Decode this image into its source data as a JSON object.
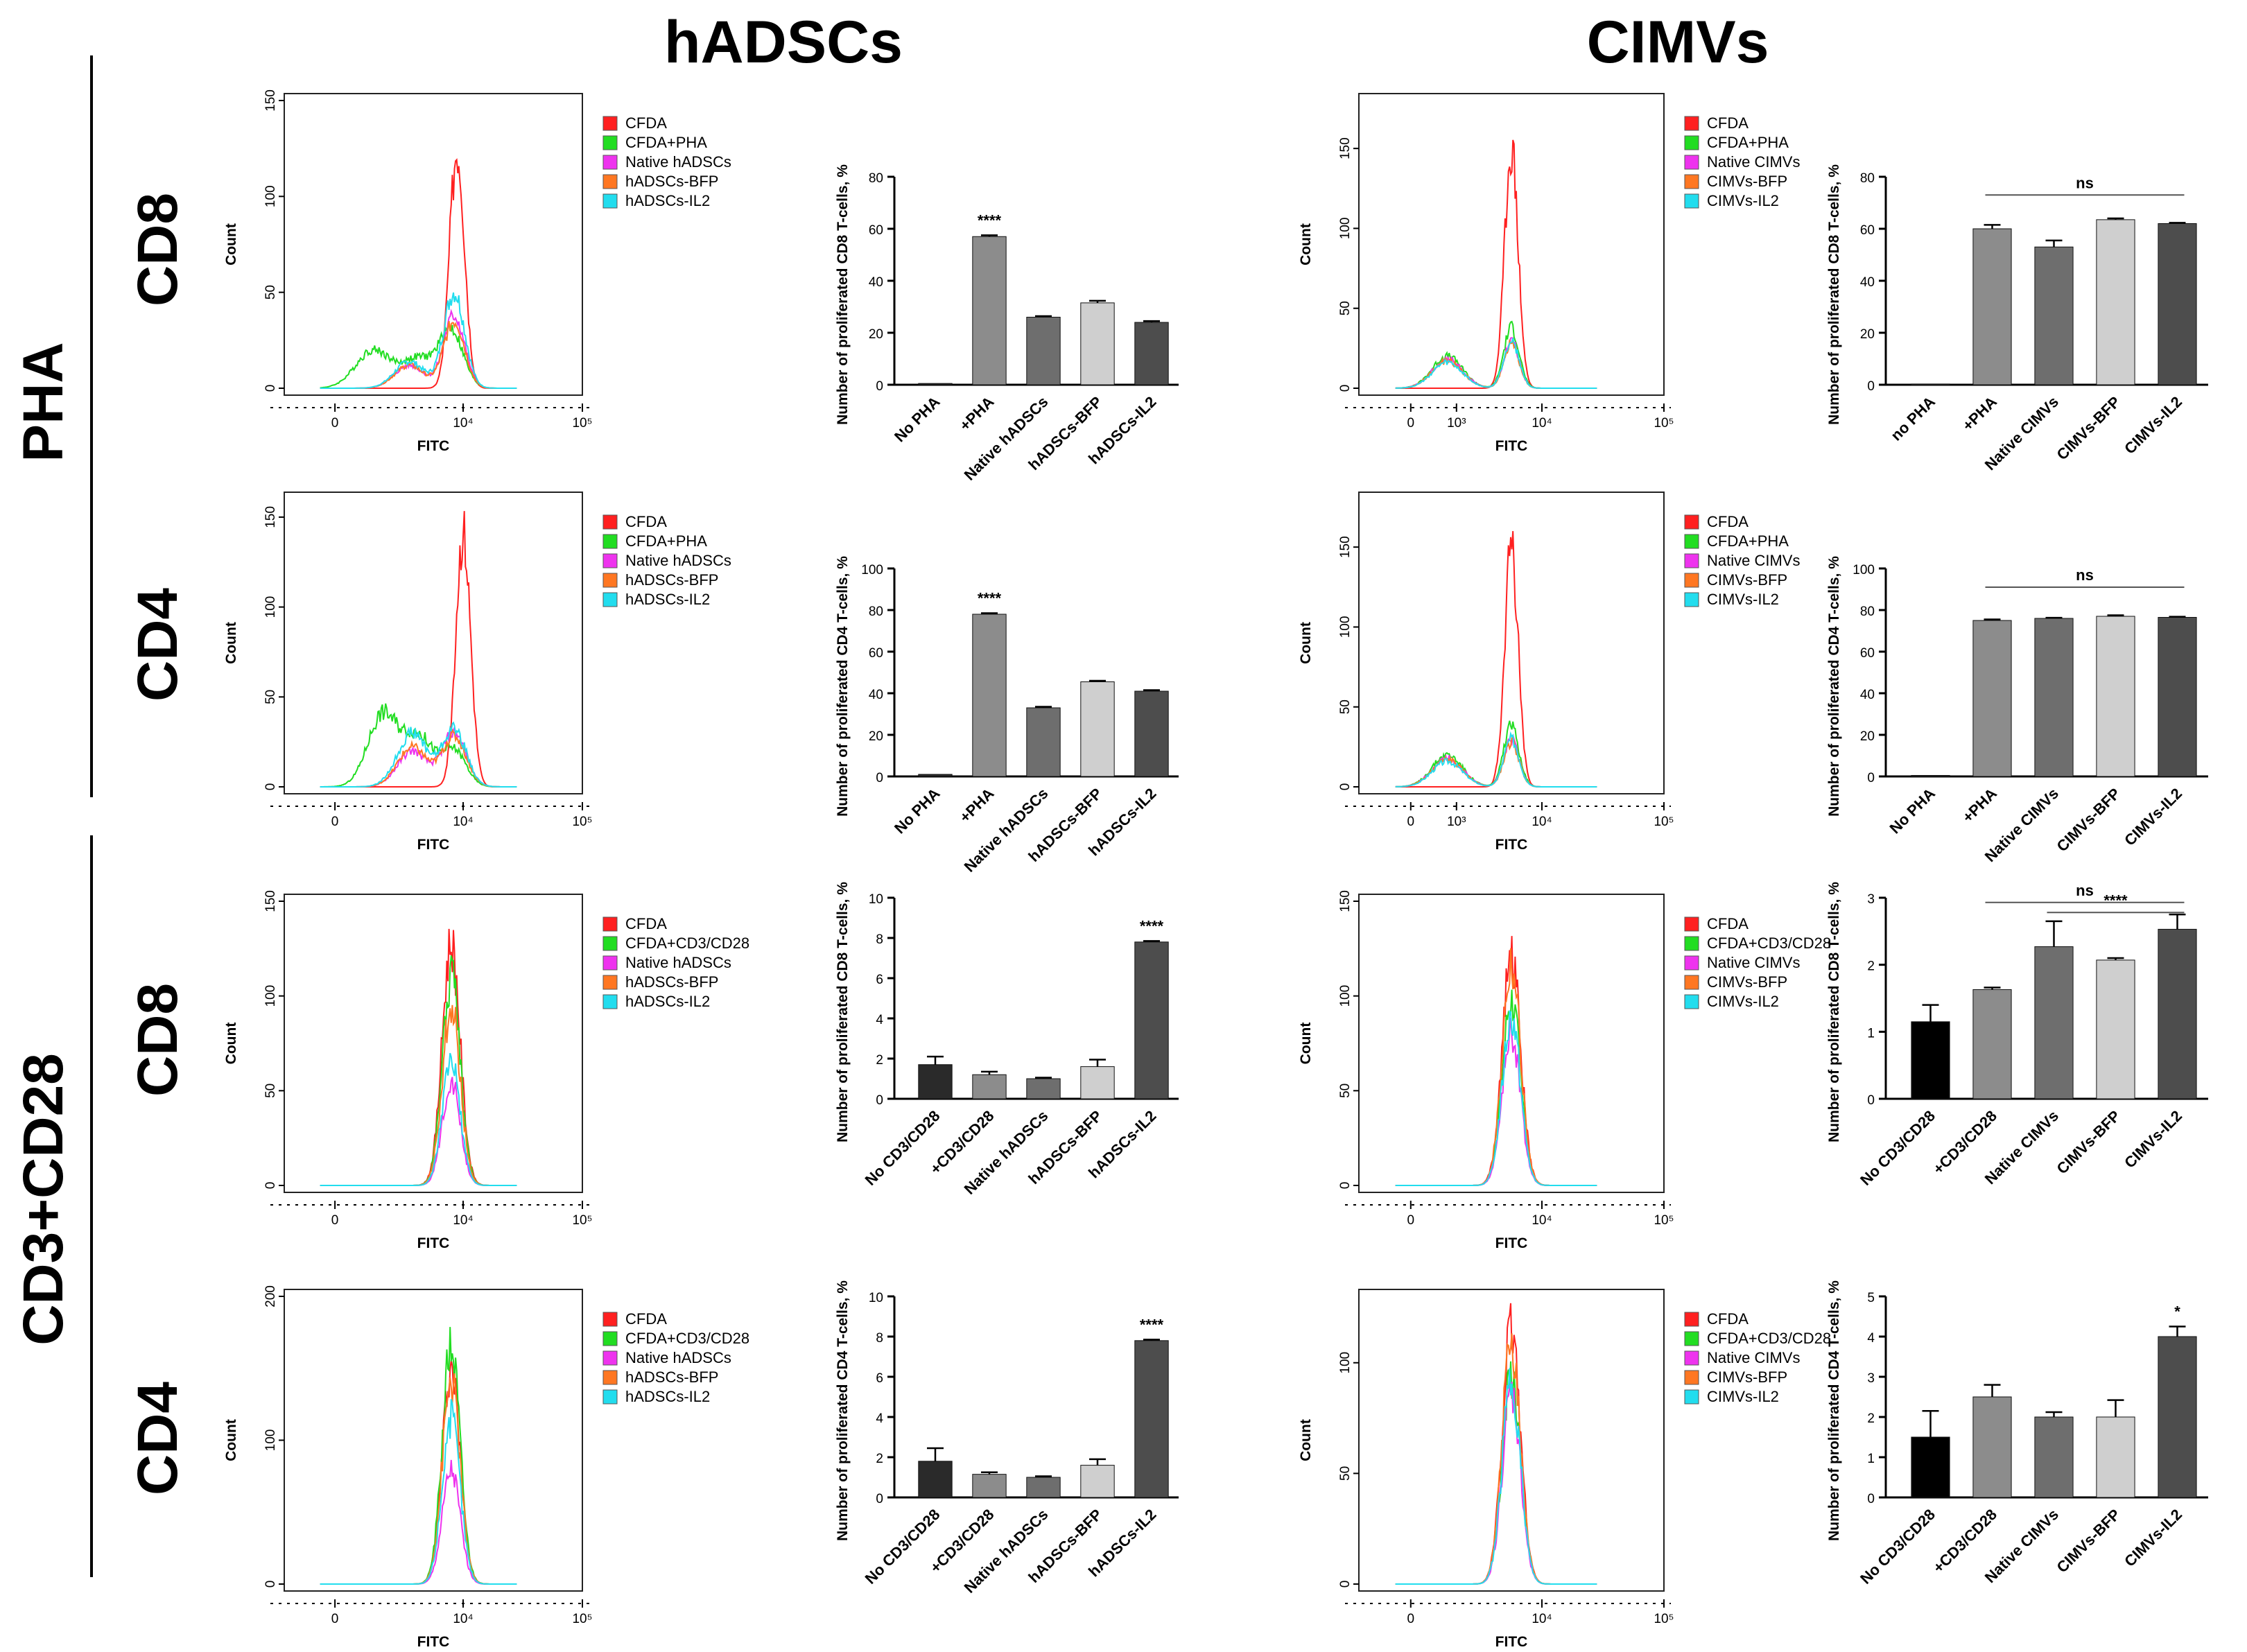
{
  "headers": {
    "left": "hADSCs",
    "right": "CIMVs"
  },
  "side_labels": {
    "top": "PHA",
    "bottom": "CD3+CD28"
  },
  "row_labels": [
    "CD8",
    "CD4",
    "CD8",
    "CD4"
  ],
  "colors": {
    "CFDA": "#ff2020",
    "stim": "#22dd22",
    "native": "#ee33ee",
    "bfp": "#ff7722",
    "il2": "#22ddee"
  },
  "chart_data": [
    {
      "type": "histogram",
      "title": "hADSCs PHA CD8 histogram",
      "xlabel": "FITC",
      "ylabel": "Count",
      "ylim": [
        0,
        150
      ],
      "yticks": [
        0,
        50,
        100,
        150
      ],
      "xticks": [
        "0",
        "10⁴",
        "10⁵"
      ],
      "legend": [
        "CFDA",
        "CFDA+PHA",
        "Native hADSCs",
        "hADSCs-BFP",
        "hADSCs-IL2"
      ],
      "series": [
        {
          "name": "CFDA",
          "peaks": [
            {
              "x": 0.58,
              "h": 125,
              "w": 0.025
            }
          ]
        },
        {
          "name": "CFDA+PHA",
          "peaks": [
            {
              "x": 0.3,
              "h": 20,
              "w": 0.06
            },
            {
              "x": 0.45,
              "h": 15,
              "w": 0.05
            },
            {
              "x": 0.56,
              "h": 30,
              "w": 0.04
            }
          ]
        },
        {
          "name": "Native hADSCs",
          "peaks": [
            {
              "x": 0.42,
              "h": 12,
              "w": 0.05
            },
            {
              "x": 0.57,
              "h": 38,
              "w": 0.035
            }
          ]
        },
        {
          "name": "hADSCs-BFP",
          "peaks": [
            {
              "x": 0.42,
              "h": 12,
              "w": 0.05
            },
            {
              "x": 0.57,
              "h": 35,
              "w": 0.035
            }
          ]
        },
        {
          "name": "hADSCs-IL2",
          "peaks": [
            {
              "x": 0.42,
              "h": 14,
              "w": 0.05
            },
            {
              "x": 0.57,
              "h": 50,
              "w": 0.035
            }
          ]
        }
      ]
    },
    {
      "type": "bar",
      "title": "hADSCs PHA CD8 bars",
      "ylabel": "Number of proliferated CD8 T-cells, %",
      "ylim": [
        0,
        80
      ],
      "yticks": [
        0,
        20,
        40,
        60,
        80
      ],
      "categories": [
        "No PHA",
        "+PHA",
        "Native hADSCs",
        "hADSCs-BFP",
        "hADSCs-IL2"
      ],
      "values": [
        0.5,
        57,
        26,
        31.5,
        24
      ],
      "errors": [
        0,
        0.5,
        0.4,
        0.8,
        0.5
      ],
      "annotations": [
        {
          "text": "****",
          "index": 1
        }
      ]
    },
    {
      "type": "histogram",
      "title": "CIMVs PHA CD8 histogram",
      "xlabel": "FITC",
      "ylabel": "Count",
      "ylim": [
        0,
        180
      ],
      "yticks": [
        0,
        50,
        100,
        150
      ],
      "xticks": [
        "0",
        "10³",
        "10⁴",
        "10⁵"
      ],
      "legend": [
        "CFDA",
        "CFDA+PHA",
        "Native CIMVs",
        "CIMVs-BFP",
        "CIMVs-IL2"
      ],
      "series": [
        {
          "name": "CFDA",
          "peaks": [
            {
              "x": 0.5,
              "h": 150,
              "w": 0.022
            }
          ]
        },
        {
          "name": "CFDA+PHA",
          "peaks": [
            {
              "x": 0.29,
              "h": 20,
              "w": 0.05
            },
            {
              "x": 0.5,
              "h": 38,
              "w": 0.025
            }
          ]
        },
        {
          "name": "Native CIMVs",
          "peaks": [
            {
              "x": 0.29,
              "h": 18,
              "w": 0.05
            },
            {
              "x": 0.5,
              "h": 30,
              "w": 0.025
            }
          ]
        },
        {
          "name": "CIMVs-BFP",
          "peaks": [
            {
              "x": 0.29,
              "h": 17,
              "w": 0.05
            },
            {
              "x": 0.5,
              "h": 28,
              "w": 0.025
            }
          ]
        },
        {
          "name": "CIMVs-IL2",
          "peaks": [
            {
              "x": 0.29,
              "h": 16,
              "w": 0.05
            },
            {
              "x": 0.5,
              "h": 30,
              "w": 0.025
            }
          ]
        }
      ]
    },
    {
      "type": "bar",
      "title": "CIMVs PHA CD8 bars",
      "ylabel": "Number of proliferated CD8 T-cells, %",
      "ylim": [
        0,
        80
      ],
      "yticks": [
        0,
        20,
        40,
        60,
        80
      ],
      "categories": [
        "no PHA",
        "+PHA",
        "Native CIMVs",
        "CIMVs-BFP",
        "CIMVs-IL2"
      ],
      "values": [
        0.3,
        60,
        53,
        63.5,
        62
      ],
      "errors": [
        0,
        1.5,
        2.5,
        0.5,
        0.3
      ],
      "brackets": [
        {
          "text": "ns",
          "from": 1,
          "to": 4,
          "y": 73
        }
      ]
    },
    {
      "type": "histogram",
      "title": "hADSCs PHA CD4 histogram",
      "xlabel": "FITC",
      "ylabel": "Count",
      "ylim": [
        0,
        160
      ],
      "yticks": [
        0,
        50,
        100,
        150
      ],
      "xticks": [
        "0",
        "10⁴",
        "10⁵"
      ],
      "legend": [
        "CFDA",
        "CFDA+PHA",
        "Native hADSCs",
        "hADSCs-BFP",
        "hADSCs-IL2"
      ],
      "series": [
        {
          "name": "CFDA",
          "peaks": [
            {
              "x": 0.6,
              "h": 140,
              "w": 0.025
            }
          ]
        },
        {
          "name": "CFDA+PHA",
          "peaks": [
            {
              "x": 0.33,
              "h": 40,
              "w": 0.05
            },
            {
              "x": 0.45,
              "h": 28,
              "w": 0.05
            },
            {
              "x": 0.57,
              "h": 20,
              "w": 0.04
            }
          ]
        },
        {
          "name": "Native hADSCs",
          "peaks": [
            {
              "x": 0.43,
              "h": 20,
              "w": 0.05
            },
            {
              "x": 0.57,
              "h": 30,
              "w": 0.04
            }
          ]
        },
        {
          "name": "hADSCs-BFP",
          "peaks": [
            {
              "x": 0.43,
              "h": 22,
              "w": 0.05
            },
            {
              "x": 0.57,
              "h": 28,
              "w": 0.04
            }
          ]
        },
        {
          "name": "hADSCs-IL2",
          "peaks": [
            {
              "x": 0.43,
              "h": 30,
              "w": 0.05
            },
            {
              "x": 0.57,
              "h": 32,
              "w": 0.04
            }
          ]
        }
      ]
    },
    {
      "type": "bar",
      "title": "hADSCs PHA CD4 bars",
      "ylabel": "Number of proliferated CD4 T-cells, %",
      "ylim": [
        0,
        100
      ],
      "yticks": [
        0,
        20,
        40,
        60,
        80,
        100
      ],
      "categories": [
        "No PHA",
        "+PHA",
        "Native hADSCs",
        "hADSCs-BFP",
        "hADSCs-IL2"
      ],
      "values": [
        1,
        78,
        33,
        45.5,
        41
      ],
      "errors": [
        0,
        0.5,
        0.5,
        0.5,
        0.5
      ],
      "annotations": [
        {
          "text": "****",
          "index": 1
        }
      ]
    },
    {
      "type": "histogram",
      "title": "CIMVs PHA CD4 histogram",
      "xlabel": "FITC",
      "ylabel": "Count",
      "ylim": [
        0,
        180
      ],
      "yticks": [
        0,
        50,
        100,
        150
      ],
      "xticks": [
        "0",
        "10³",
        "10⁴",
        "10⁵"
      ],
      "legend": [
        "CFDA",
        "CFDA+PHA",
        "Native CIMVs",
        "CIMVs-BFP",
        "CIMVs-IL2"
      ],
      "series": [
        {
          "name": "CFDA",
          "peaks": [
            {
              "x": 0.5,
              "h": 150,
              "w": 0.022
            }
          ]
        },
        {
          "name": "CFDA+PHA",
          "peaks": [
            {
              "x": 0.29,
              "h": 20,
              "w": 0.05
            },
            {
              "x": 0.5,
              "h": 38,
              "w": 0.025
            }
          ]
        },
        {
          "name": "Native CIMVs",
          "peaks": [
            {
              "x": 0.29,
              "h": 18,
              "w": 0.05
            },
            {
              "x": 0.5,
              "h": 30,
              "w": 0.025
            }
          ]
        },
        {
          "name": "CIMVs-BFP",
          "peaks": [
            {
              "x": 0.29,
              "h": 17,
              "w": 0.05
            },
            {
              "x": 0.5,
              "h": 28,
              "w": 0.025
            }
          ]
        },
        {
          "name": "CIMVs-IL2",
          "peaks": [
            {
              "x": 0.29,
              "h": 16,
              "w": 0.05
            },
            {
              "x": 0.5,
              "h": 30,
              "w": 0.025
            }
          ]
        }
      ]
    },
    {
      "type": "bar",
      "title": "CIMVs PHA CD4 bars",
      "ylabel": "Number of proliferated CD4 T-cells, %",
      "ylim": [
        0,
        100
      ],
      "yticks": [
        0,
        20,
        40,
        60,
        80,
        100
      ],
      "categories": [
        "No PHA",
        "+PHA",
        "Native CIMVs",
        "CIMVs-BFP",
        "CIMVs-IL2"
      ],
      "values": [
        0.5,
        75,
        76,
        77,
        76.5
      ],
      "errors": [
        0,
        0.5,
        0.3,
        0.5,
        0.3
      ],
      "brackets": [
        {
          "text": "ns",
          "from": 1,
          "to": 4,
          "y": 91
        }
      ]
    },
    {
      "type": "histogram",
      "title": "hADSCs CD3+CD28 CD8 histogram",
      "xlabel": "FITC",
      "ylabel": "Count",
      "ylim": [
        0,
        150
      ],
      "yticks": [
        0,
        50,
        100,
        150
      ],
      "xticks": [
        "0",
        "10⁴",
        "10⁵"
      ],
      "legend": [
        "CFDA",
        "CFDA+CD3/CD28",
        "Native hADSCs",
        "hADSCs-BFP",
        "hADSCs-IL2"
      ],
      "series": [
        {
          "name": "CFDA",
          "peaks": [
            {
              "x": 0.56,
              "h": 128,
              "w": 0.03
            }
          ]
        },
        {
          "name": "CFDA+CD3/CD28",
          "peaks": [
            {
              "x": 0.56,
              "h": 110,
              "w": 0.03
            }
          ]
        },
        {
          "name": "Native hADSCs",
          "peaks": [
            {
              "x": 0.56,
              "h": 55,
              "w": 0.03
            }
          ]
        },
        {
          "name": "hADSCs-BFP",
          "peaks": [
            {
              "x": 0.56,
              "h": 95,
              "w": 0.03
            }
          ]
        },
        {
          "name": "hADSCs-IL2",
          "peaks": [
            {
              "x": 0.56,
              "h": 65,
              "w": 0.03
            }
          ]
        }
      ]
    },
    {
      "type": "bar",
      "title": "hADSCs CD3+CD28 CD8 bars",
      "ylabel": "Number of proliferated CD8 T-cells, %",
      "ylim": [
        0,
        10
      ],
      "yticks": [
        0,
        2,
        4,
        6,
        8,
        10
      ],
      "categories": [
        "No CD3/CD28",
        "+CD3/CD28",
        "Native hADSCs",
        "hADSCs-BFP",
        "hADSCs-IL2"
      ],
      "values": [
        1.7,
        1.2,
        1.0,
        1.6,
        7.8
      ],
      "errors": [
        0.4,
        0.15,
        0.05,
        0.35,
        0.05
      ],
      "annotations": [
        {
          "text": "****",
          "index": 4
        }
      ]
    },
    {
      "type": "histogram",
      "title": "CIMVs CD3+CD28 CD8 histogram",
      "xlabel": "FITC",
      "ylabel": "Count",
      "ylim": [
        0,
        150
      ],
      "yticks": [
        0,
        50,
        100,
        150
      ],
      "xticks": [
        "0",
        "10⁴",
        "10⁵"
      ],
      "legend": [
        "CFDA",
        "CFDA+CD3/CD28",
        "Native CIMVs",
        "CIMVs-BFP",
        "CIMVs-IL2"
      ],
      "series": [
        {
          "name": "CFDA",
          "peaks": [
            {
              "x": 0.5,
              "h": 122,
              "w": 0.03
            }
          ]
        },
        {
          "name": "CFDA+CD3/CD28",
          "peaks": [
            {
              "x": 0.5,
              "h": 100,
              "w": 0.03
            }
          ]
        },
        {
          "name": "Native CIMVs",
          "peaks": [
            {
              "x": 0.5,
              "h": 80,
              "w": 0.03
            }
          ]
        },
        {
          "name": "CIMVs-BFP",
          "peaks": [
            {
              "x": 0.5,
              "h": 118,
              "w": 0.03
            }
          ]
        },
        {
          "name": "CIMVs-IL2",
          "peaks": [
            {
              "x": 0.5,
              "h": 90,
              "w": 0.03
            }
          ]
        }
      ]
    },
    {
      "type": "bar",
      "title": "CIMVs CD3+CD28 CD8 bars",
      "ylabel": "Number of proliferated CD8 T-cells, %",
      "ylim": [
        0,
        3
      ],
      "yticks": [
        0,
        1,
        2,
        3
      ],
      "categories": [
        "No CD3/CD28",
        "+CD3/CD28",
        "Native CIMVs",
        "CIMVs-BFP",
        "CIMVs-IL2"
      ],
      "values": [
        1.15,
        1.63,
        2.27,
        2.07,
        2.53
      ],
      "errors": [
        0.25,
        0.03,
        0.38,
        0.03,
        0.22
      ],
      "fills": [
        "#000000",
        "#8c8c8c",
        "#6e6e6e",
        "#cfcfcf",
        "#4d4d4d"
      ],
      "brackets": [
        {
          "text": "ns",
          "from": 1,
          "to": 4,
          "y": 2.93
        },
        {
          "text": "****",
          "from": 2,
          "to": 4,
          "y": 2.78
        }
      ]
    },
    {
      "type": "histogram",
      "title": "hADSCs CD3+CD28 CD4 histogram",
      "xlabel": "FITC",
      "ylabel": "Count",
      "ylim": [
        0,
        200
      ],
      "yticks": [
        0,
        100,
        200
      ],
      "xticks": [
        "0",
        "10⁴",
        "10⁵"
      ],
      "legend": [
        "CFDA",
        "CFDA+CD3/CD28",
        "Native hADSCs",
        "hADSCs-BFP",
        "hADSCs-IL2"
      ],
      "series": [
        {
          "name": "CFDA",
          "peaks": [
            {
              "x": 0.56,
              "h": 150,
              "w": 0.03
            }
          ]
        },
        {
          "name": "CFDA+CD3/CD28",
          "peaks": [
            {
              "x": 0.56,
              "h": 165,
              "w": 0.03
            }
          ]
        },
        {
          "name": "Native hADSCs",
          "peaks": [
            {
              "x": 0.56,
              "h": 80,
              "w": 0.03
            }
          ]
        },
        {
          "name": "hADSCs-BFP",
          "peaks": [
            {
              "x": 0.56,
              "h": 140,
              "w": 0.03
            }
          ]
        },
        {
          "name": "hADSCs-IL2",
          "peaks": [
            {
              "x": 0.56,
              "h": 115,
              "w": 0.03
            }
          ]
        }
      ]
    },
    {
      "type": "bar",
      "title": "hADSCs CD3+CD28 CD4 bars",
      "ylabel": "Number of proliferated CD4 T-cells, %",
      "ylim": [
        0,
        10
      ],
      "yticks": [
        0,
        2,
        4,
        6,
        8,
        10
      ],
      "categories": [
        "No CD3/CD28",
        "+CD3/CD28",
        "Native hADSCs",
        "hADSCs-BFP",
        "hADSCs-IL2"
      ],
      "values": [
        1.8,
        1.15,
        1.0,
        1.6,
        7.8
      ],
      "errors": [
        0.65,
        0.1,
        0.05,
        0.3,
        0.05
      ],
      "annotations": [
        {
          "text": "****",
          "index": 4
        }
      ]
    },
    {
      "type": "histogram",
      "title": "CIMVs CD3+CD28 CD4 histogram",
      "xlabel": "FITC",
      "ylabel": "Count",
      "ylim": [
        0,
        130
      ],
      "yticks": [
        0,
        50,
        100
      ],
      "xticks": [
        "0",
        "10⁴",
        "10⁵"
      ],
      "legend": [
        "CFDA",
        "CFDA+CD3/CD28",
        "Native CIMVs",
        "CIMVs-BFP",
        "CIMVs-IL2"
      ],
      "series": [
        {
          "name": "CFDA",
          "peaks": [
            {
              "x": 0.5,
              "h": 115,
              "w": 0.03
            }
          ]
        },
        {
          "name": "CFDA+CD3/CD28",
          "peaks": [
            {
              "x": 0.5,
              "h": 95,
              "w": 0.03
            }
          ]
        },
        {
          "name": "Native CIMVs",
          "peaks": [
            {
              "x": 0.5,
              "h": 85,
              "w": 0.03
            }
          ]
        },
        {
          "name": "CIMVs-BFP",
          "peaks": [
            {
              "x": 0.5,
              "h": 110,
              "w": 0.03
            }
          ]
        },
        {
          "name": "CIMVs-IL2",
          "peaks": [
            {
              "x": 0.5,
              "h": 92,
              "w": 0.03
            }
          ]
        }
      ]
    },
    {
      "type": "bar",
      "title": "CIMVs CD3+CD28 CD4 bars",
      "ylabel": "Number of proliferated CD4 T-cells, %",
      "ylim": [
        0,
        5
      ],
      "yticks": [
        0,
        1,
        2,
        3,
        4,
        5
      ],
      "categories": [
        "No CD3/CD28",
        "+CD3/CD28",
        "Native CIMVs",
        "CIMVs-BFP",
        "CIMVs-IL2"
      ],
      "values": [
        1.5,
        2.5,
        2.0,
        2.0,
        4.0
      ],
      "errors": [
        0.65,
        0.3,
        0.12,
        0.42,
        0.25
      ],
      "fills": [
        "#000000",
        "#8c8c8c",
        "#6e6e6e",
        "#cfcfcf",
        "#4d4d4d"
      ],
      "annotations": [
        {
          "text": "*",
          "index": 4
        }
      ]
    }
  ]
}
